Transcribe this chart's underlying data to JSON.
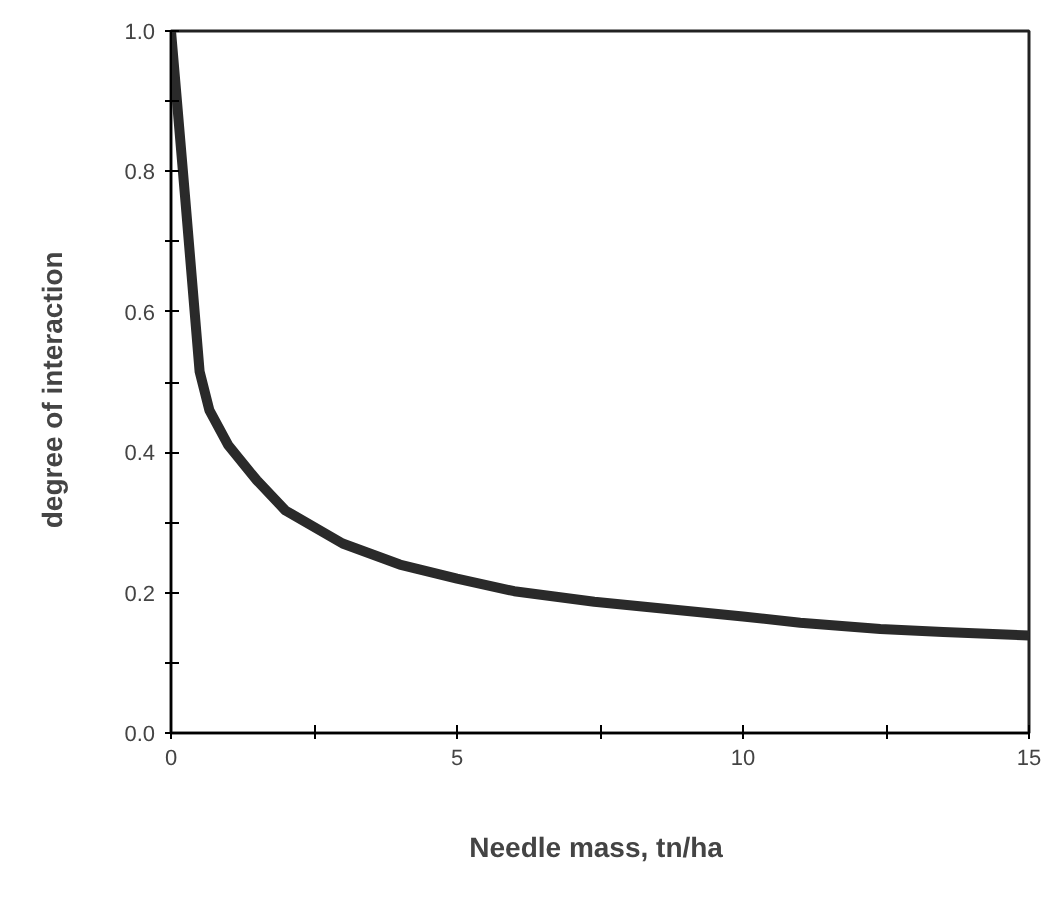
{
  "chart_data": {
    "type": "line",
    "xlabel": "Needle mass,  tn/ha",
    "ylabel": "degree  of  interaction",
    "x": [
      0,
      0.25,
      0.5,
      0.67,
      1.0,
      1.5,
      2.0,
      3.0,
      4.0,
      5.0,
      6.0,
      7.4,
      8.5,
      10.0,
      11.0,
      12.4,
      13.5,
      15.0
    ],
    "series": [
      {
        "color": "#2a2a2a",
        "values": [
          1.0,
          0.76,
          0.515,
          0.46,
          0.41,
          0.36,
          0.317,
          0.27,
          0.24,
          0.22,
          0.202,
          0.187,
          0.178,
          0.166,
          0.157,
          0.148,
          0.144,
          0.139
        ]
      }
    ],
    "xlim": [
      0,
      15
    ],
    "ylim": [
      0,
      1.0
    ],
    "xticks": [
      0,
      5,
      10,
      15,
      {
        "value": 2.5,
        "label": null
      },
      {
        "value": 7.5,
        "label": null
      },
      {
        "value": 12.5,
        "label": null
      }
    ],
    "yticks": [
      "0.0",
      0.2,
      0.4,
      0.6,
      0.8,
      "1.0",
      {
        "value": 0.1,
        "label": null
      },
      {
        "value": 0.3,
        "label": null
      },
      {
        "value": 0.5,
        "label": null
      },
      {
        "value": 0.7,
        "label": null
      },
      {
        "value": 0.9,
        "label": null
      }
    ],
    "grid": false,
    "line_style": "solid",
    "marker": "none"
  }
}
